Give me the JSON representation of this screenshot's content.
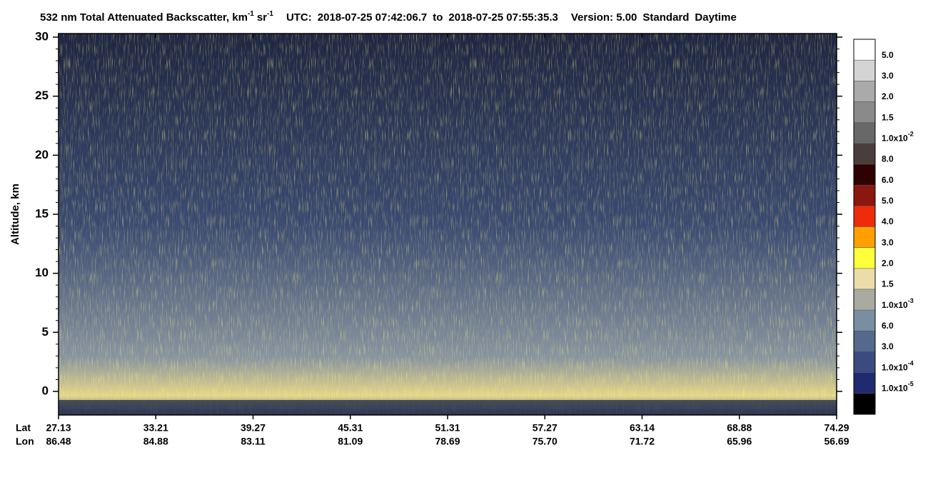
{
  "chart_data": {
    "type": "heatmap",
    "title": {
      "text": "532 nm Total Attenuated Backscatter, km",
      "sup1": "-1",
      "unit2": "sr",
      "sup2": "-1"
    },
    "subtitle": {
      "utc": "UTC:",
      "start": "2018-07-25 07:42:06.7",
      "to": "to",
      "end": "2018-07-25 07:55:35.3",
      "version": "Version: 5.00",
      "standard": "Standard",
      "daytime": "Daytime"
    },
    "ylabel": "Altitude, km",
    "ylim": [
      -2,
      30
    ],
    "yticks": [
      0,
      5,
      10,
      15,
      20,
      25,
      30
    ],
    "x_rows": [
      {
        "name": "Lat",
        "labels": [
          "27.13",
          "33.21",
          "39.27",
          "45.31",
          "51.31",
          "57.27",
          "63.14",
          "68.88",
          "74.29"
        ]
      },
      {
        "name": "Lon",
        "labels": [
          "86.48",
          "84.88",
          "83.11",
          "81.09",
          "78.69",
          "75.70",
          "71.72",
          "65.96",
          "56.69"
        ]
      }
    ],
    "colorbar": {
      "colors": [
        "#ffffff",
        "#d4d4d4",
        "#aaaaaa",
        "#8a8a8a",
        "#686868",
        "#4a3e3c",
        "#2e0202",
        "#8a1710",
        "#ee2c0c",
        "#ffa000",
        "#ffff3c",
        "#ecdcaa",
        "#a9aba1",
        "#7a8ea2",
        "#54698c",
        "#3a4b80",
        "#202a70",
        "#000000"
      ],
      "labels": [
        {
          "text": "5.0"
        },
        {
          "text": "3.0"
        },
        {
          "text": "2.0"
        },
        {
          "text": "1.5"
        },
        {
          "text": "1.0x10",
          "exp": "-2"
        },
        {
          "text": "8.0"
        },
        {
          "text": "6.0"
        },
        {
          "text": "5.0"
        },
        {
          "text": "4.0"
        },
        {
          "text": "3.0"
        },
        {
          "text": "2.0"
        },
        {
          "text": "1.5"
        },
        {
          "text": "1.0x10",
          "exp": "-3"
        },
        {
          "text": "6.0"
        },
        {
          "text": "3.0"
        },
        {
          "text": "1.0x10",
          "exp": "-4"
        },
        {
          "text": "1.0x10",
          "exp": "-5"
        }
      ]
    }
  }
}
